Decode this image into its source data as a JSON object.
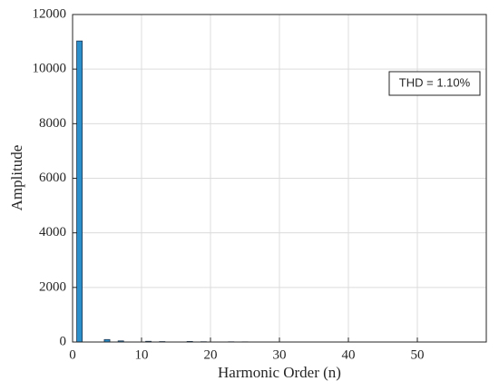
{
  "chart_data": {
    "type": "bar",
    "xlabel": "Harmonic Order (n)",
    "ylabel": "Amplitude",
    "annotation": "THD = 1.10%",
    "x": [
      1,
      5,
      7,
      11,
      13,
      17,
      19,
      23,
      25
    ],
    "values": [
      11030,
      90,
      40,
      25,
      15,
      20,
      10,
      8,
      6
    ],
    "color": "#2b8fcc",
    "xlim": [
      0,
      60
    ],
    "ylim": [
      0,
      12000
    ],
    "xticks": [
      0,
      10,
      20,
      30,
      40,
      50
    ],
    "yticks": [
      0,
      2000,
      4000,
      6000,
      8000,
      10000,
      12000
    ],
    "grid": true
  }
}
